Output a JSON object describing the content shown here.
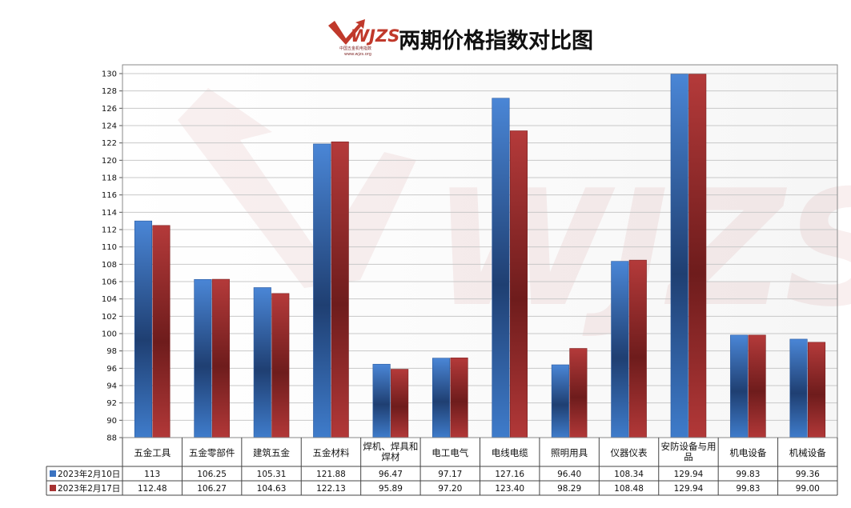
{
  "logo": {
    "text": "WJZS",
    "subtitle": "中国五金机电指数",
    "url": "www.wjzs.org"
  },
  "colors": {
    "series1": "#3b73c1",
    "series2": "#a63232",
    "grid": "#c8c8c8",
    "plot_border": "#888888"
  },
  "chart_data": {
    "type": "bar",
    "title": "两期价格指数对比图",
    "categories": [
      "五金工具",
      "五金零部件",
      "建筑五金",
      "五金材料",
      "焊机、焊具和焊材",
      "电工电气",
      "电线电缆",
      "照明用具",
      "仪器仪表",
      "安防设备与用品",
      "机电设备",
      "机械设备"
    ],
    "series": [
      {
        "name": "2023年2月10日",
        "values": [
          113,
          106.25,
          105.31,
          121.88,
          96.47,
          97.17,
          127.16,
          96.4,
          108.34,
          129.94,
          99.83,
          99.36
        ],
        "labels": [
          "113",
          "106.25",
          "105.31",
          "121.88",
          "96.47",
          "97.17",
          "127.16",
          "96.40",
          "108.34",
          "129.94",
          "99.83",
          "99.36"
        ]
      },
      {
        "name": "2023年2月17日",
        "values": [
          112.48,
          106.27,
          104.63,
          122.13,
          95.89,
          97.2,
          123.4,
          98.29,
          108.48,
          129.94,
          99.83,
          99.0
        ],
        "labels": [
          "112.48",
          "106.27",
          "104.63",
          "122.13",
          "95.89",
          "97.20",
          "123.40",
          "98.29",
          "108.48",
          "129.94",
          "99.83",
          "99.00"
        ]
      }
    ],
    "ylim": [
      88,
      130
    ],
    "yticks": [
      88,
      90,
      92,
      94,
      96,
      98,
      100,
      102,
      104,
      106,
      108,
      110,
      112,
      114,
      116,
      118,
      120,
      122,
      124,
      126,
      128,
      130
    ],
    "grid": true,
    "legend": "data-table-left",
    "xlabel": "",
    "ylabel": ""
  }
}
